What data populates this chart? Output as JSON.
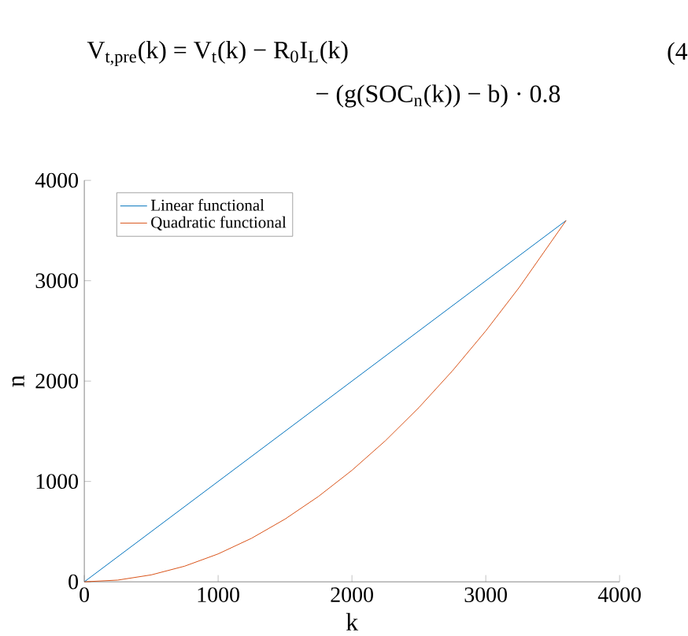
{
  "chart_data": {
    "type": "line",
    "xlabel": "k",
    "ylabel": "n",
    "annotations": [
      "V$_{t,pre}$(k) = V$_{t}$(k) − R$_{0}$I$_{L}$(k)",
      "− (g(SOC$_{n}$(k)) − b) · 0.8",
      "(4"
    ],
    "series": [
      {
        "name": "Linear functional",
        "color": "#0072bd",
        "x": [
          0,
          3600
        ],
        "values": [
          0,
          3600
        ]
      },
      {
        "name": "Quadratic functional",
        "color": "#d95319",
        "x": [
          0,
          250,
          500,
          750,
          1000,
          1250,
          1500,
          1750,
          2000,
          2250,
          2500,
          2750,
          3000,
          3250,
          3600
        ],
        "values": [
          0,
          17,
          69,
          156,
          278,
          434,
          625,
          851,
          1111,
          1406,
          1736,
          2101,
          2500,
          2934,
          3600
        ]
      }
    ],
    "xlim": [
      0,
      4000
    ],
    "ylim": [
      0,
      4000
    ],
    "xticks": [
      0,
      1000,
      2000,
      3000,
      4000
    ],
    "yticks": [
      0,
      1000,
      2000,
      3000,
      4000
    ],
    "grid": false,
    "legend": "top left",
    "marker": "none",
    "line_style": "solid"
  }
}
